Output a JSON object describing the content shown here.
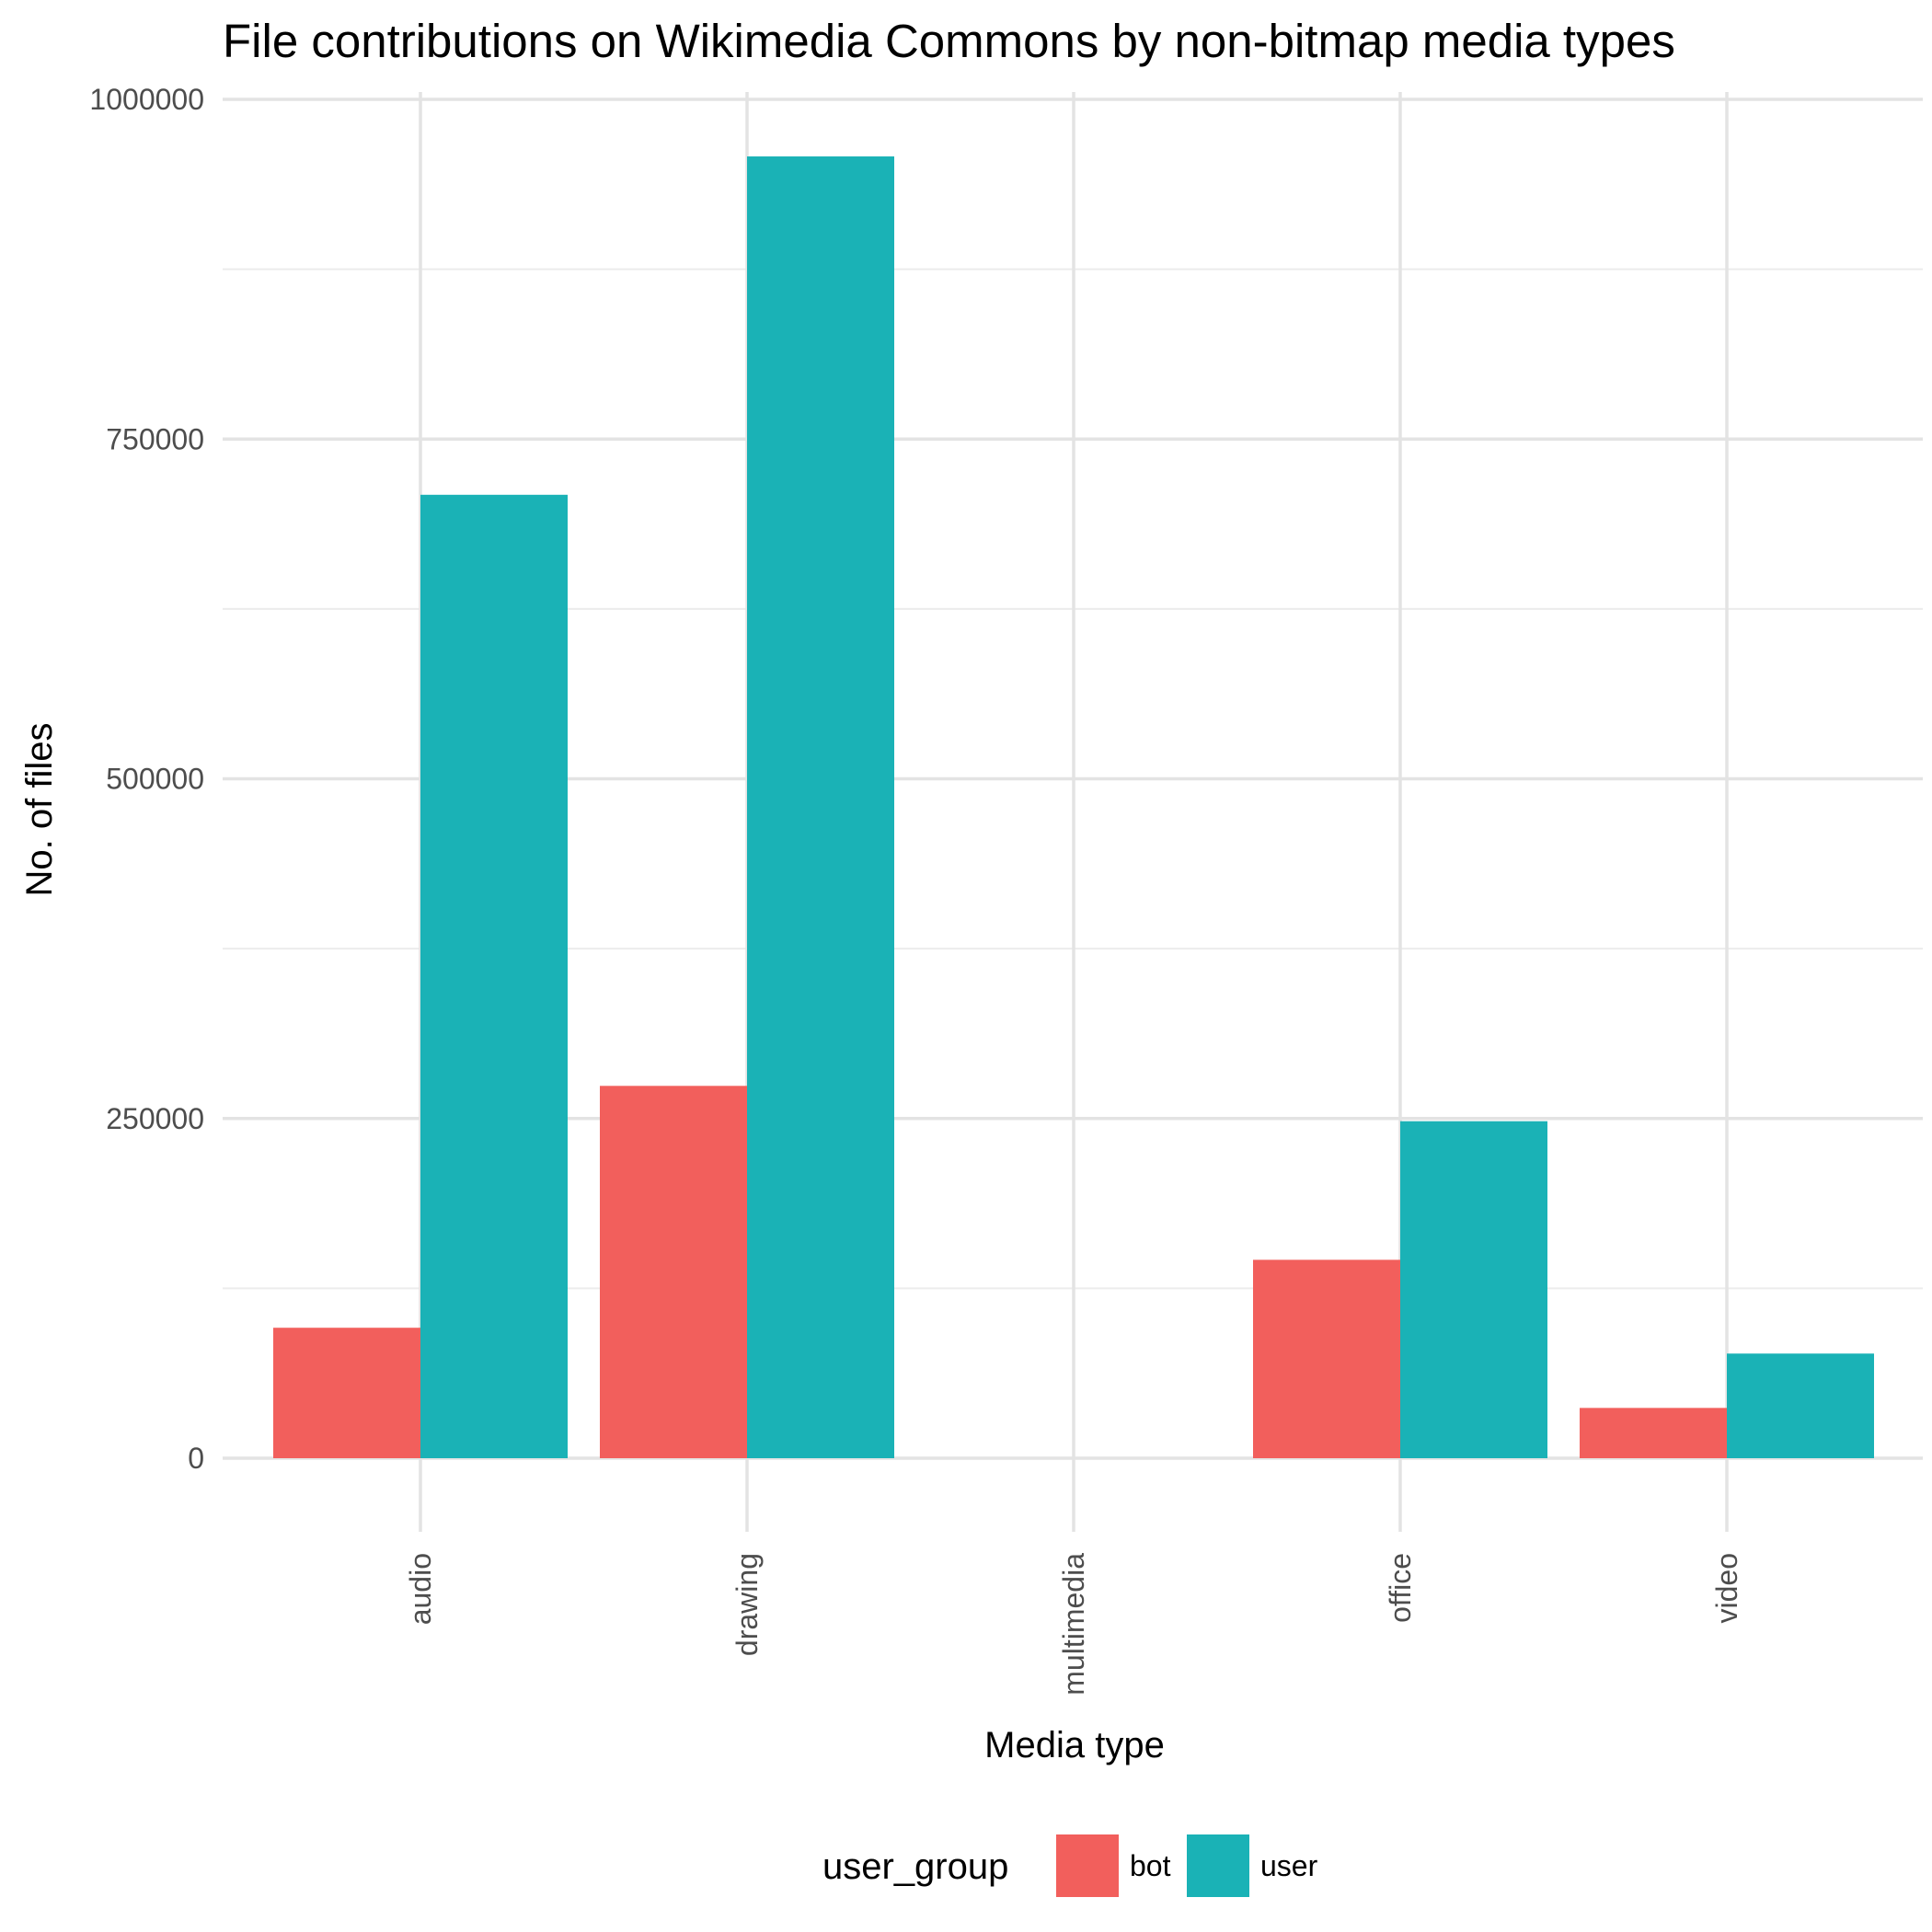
{
  "chart_data": {
    "type": "bar",
    "title": "File contributions on Wikimedia Commons by non-bitmap media types",
    "xlabel": "Media type",
    "ylabel": "No. of files",
    "categories": [
      "audio",
      "drawing",
      "multimedia",
      "office",
      "video"
    ],
    "series": [
      {
        "name": "bot",
        "color": "#F25F5C",
        "values": [
          96000,
          274000,
          0,
          146000,
          37000
        ]
      },
      {
        "name": "user",
        "color": "#1AB2B6",
        "values": [
          709000,
          958000,
          0,
          248000,
          77000
        ]
      }
    ],
    "yticks": [
      0,
      250000,
      500000,
      750000,
      1000000
    ],
    "ytick_labels": [
      "0",
      "250000",
      "500000",
      "750000",
      "1000000"
    ],
    "ylim": [
      -50000,
      1000000
    ],
    "grid": true,
    "legend": {
      "title": "user_group",
      "position": "bottom"
    }
  }
}
